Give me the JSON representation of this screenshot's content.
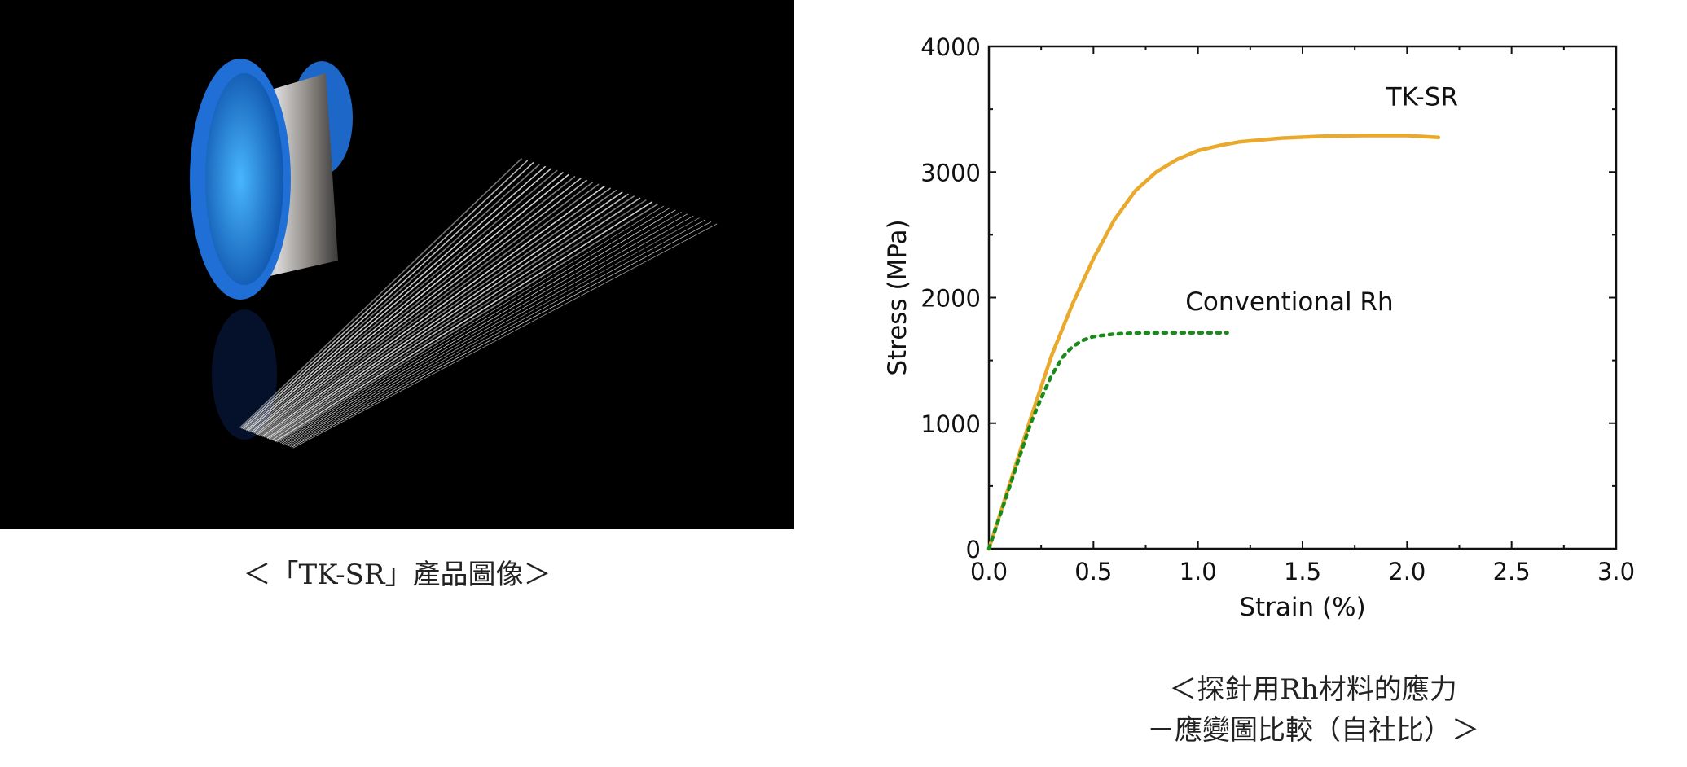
{
  "photo": {
    "caption": "＜「TK-SR」產品圖像＞",
    "colors": {
      "spool": "#1f6fd6",
      "background": "#000000",
      "wire": "#d8d8d8"
    }
  },
  "chart_caption": {
    "line1": "＜探針用Rh材料的應力",
    "line2": "－應變圖比較（自社比）＞"
  },
  "chart_data": {
    "type": "line",
    "title": "",
    "xlabel": "Strain (%)",
    "ylabel": "Stress (MPa)",
    "xlim": [
      0,
      3.0
    ],
    "ylim": [
      0,
      4000
    ],
    "xticks": [
      "0.0",
      "0.5",
      "1.0",
      "1.5",
      "2.0",
      "2.5",
      "3.0"
    ],
    "yticks": [
      "0",
      "1000",
      "2000",
      "3000",
      "4000"
    ],
    "grid": false,
    "series": [
      {
        "name": "TK-SR",
        "color": "#E9A92C",
        "style": "solid",
        "x": [
          0,
          0.1,
          0.2,
          0.3,
          0.4,
          0.5,
          0.6,
          0.7,
          0.8,
          0.9,
          1.0,
          1.1,
          1.2,
          1.4,
          1.6,
          1.8,
          2.0,
          2.15
        ],
        "y": [
          0,
          520,
          1040,
          1540,
          1950,
          2310,
          2620,
          2850,
          3000,
          3100,
          3170,
          3210,
          3240,
          3270,
          3285,
          3290,
          3290,
          3275
        ]
      },
      {
        "name": "Conventional Rh",
        "color": "#1A8A1A",
        "style": "dotted",
        "x": [
          0,
          0.1,
          0.2,
          0.25,
          0.3,
          0.35,
          0.4,
          0.45,
          0.5,
          0.6,
          0.7,
          0.8,
          1.0,
          1.14
        ],
        "y": [
          0,
          500,
          1000,
          1200,
          1380,
          1520,
          1610,
          1660,
          1690,
          1710,
          1718,
          1720,
          1720,
          1720
        ]
      }
    ]
  }
}
